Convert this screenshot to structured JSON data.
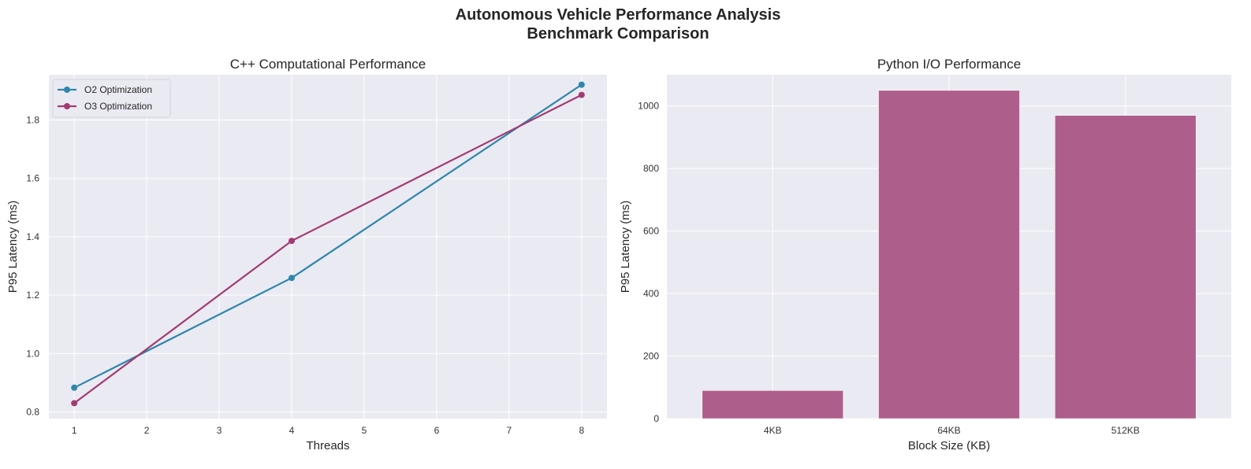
{
  "figure": {
    "title_line1": "Autonomous Vehicle Performance Analysis",
    "title_line2": "Benchmark Comparison"
  },
  "colors": {
    "axes_background": "#eaeaf2",
    "grid": "#ffffff",
    "o2_line": "#2e86ab",
    "o3_line": "#a23b72",
    "bar": "#ae5e8a"
  },
  "chart_data": [
    {
      "type": "line",
      "title": "C++ Computational Performance",
      "xlabel": "Threads",
      "ylabel": "P95 Latency (ms)",
      "xlim": [
        0.65,
        8.35
      ],
      "ylim": [
        0.777,
        1.955
      ],
      "xticks": [
        1,
        2,
        3,
        4,
        5,
        6,
        7,
        8
      ],
      "yticks": [
        0.8,
        1.0,
        1.2,
        1.4,
        1.6,
        1.8
      ],
      "ytick_labels": [
        "0.8",
        "1.0",
        "1.2",
        "1.4",
        "1.6",
        "1.8"
      ],
      "grid": true,
      "legend_position": "top-left",
      "series": [
        {
          "name": "O2 Optimization",
          "color": "#2e86ab",
          "x": [
            1,
            4,
            8
          ],
          "y": [
            0.883,
            1.259,
            1.921
          ]
        },
        {
          "name": "O3 Optimization",
          "color": "#a23b72",
          "x": [
            1,
            4,
            8
          ],
          "y": [
            0.83,
            1.386,
            1.886
          ]
        }
      ]
    },
    {
      "type": "bar",
      "title": "Python I/O Performance",
      "xlabel": "Block Size (KB)",
      "ylabel": "P95 Latency (ms)",
      "ylim": [
        0,
        1100
      ],
      "yticks": [
        0,
        200,
        400,
        600,
        800,
        1000
      ],
      "grid": true,
      "categories": [
        "4KB",
        "64KB",
        "512KB"
      ],
      "values": [
        90,
        1050,
        970
      ],
      "color": "#ae5e8a"
    }
  ]
}
